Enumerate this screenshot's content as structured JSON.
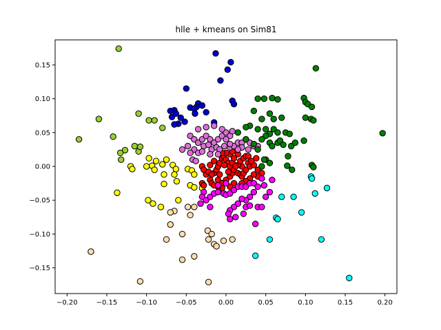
{
  "chart_data": {
    "type": "scatter",
    "title": "hlle + kmeans on Sim81",
    "xlabel": "",
    "ylabel": "",
    "xlim": [
      -0.215,
      0.215
    ],
    "ylim": [
      -0.188,
      0.187
    ],
    "xticks": [
      "−0.20",
      "−0.15",
      "−0.10",
      "−0.05",
      "0.00",
      "0.05",
      "0.10",
      "0.15",
      "0.20"
    ],
    "xtick_values": [
      -0.2,
      -0.15,
      -0.1,
      -0.05,
      0.0,
      0.05,
      0.1,
      0.15,
      0.2
    ],
    "yticks": [
      "−0.15",
      "−0.10",
      "−0.05",
      "0.00",
      "0.05",
      "0.10",
      "0.15"
    ],
    "ytick_values": [
      -0.15,
      -0.1,
      -0.05,
      0.0,
      0.05,
      0.1,
      0.15
    ],
    "grid": false,
    "legend": false,
    "marker_edge_color": "#000000",
    "series": [
      {
        "color": "#0000cd",
        "points": [
          [
            -0.013,
            0.167
          ],
          [
            0.006,
            0.154
          ],
          [
            0.002,
            0.143
          ],
          [
            -0.007,
            0.127
          ],
          [
            -0.05,
            0.115
          ],
          [
            -0.035,
            0.093
          ],
          [
            -0.037,
            0.088
          ],
          [
            -0.03,
            0.09
          ],
          [
            -0.045,
            0.087
          ],
          [
            -0.065,
            0.083
          ],
          [
            -0.07,
            0.082
          ],
          [
            -0.063,
            0.078
          ],
          [
            -0.04,
            0.085
          ],
          [
            -0.039,
            0.078
          ],
          [
            -0.025,
            0.08
          ],
          [
            -0.057,
            0.072
          ],
          [
            -0.068,
            0.073
          ],
          [
            -0.052,
            0.066
          ],
          [
            -0.06,
            0.063
          ],
          [
            -0.065,
            0.062
          ],
          [
            0.008,
            0.097
          ],
          [
            0.01,
            0.092
          ],
          [
            -0.015,
            0.065
          ]
        ]
      },
      {
        "color": "#9acd32",
        "points": [
          [
            -0.135,
            0.174
          ],
          [
            -0.16,
            0.07
          ],
          [
            -0.11,
            0.078
          ],
          [
            -0.097,
            0.068
          ],
          [
            -0.09,
            0.068
          ],
          [
            -0.08,
            0.057
          ],
          [
            -0.185,
            0.04
          ],
          [
            -0.142,
            0.044
          ],
          [
            -0.127,
            0.024
          ],
          [
            -0.133,
            0.02
          ],
          [
            -0.132,
            0.01
          ],
          [
            -0.115,
            0.03
          ],
          [
            -0.11,
            0.022
          ],
          [
            -0.108,
            0.029
          ]
        ]
      },
      {
        "color": "#ffff00",
        "points": [
          [
            -0.097,
            0.012
          ],
          [
            -0.088,
            0.008
          ],
          [
            -0.075,
            0.01
          ],
          [
            -0.067,
            0.002
          ],
          [
            -0.08,
            0.003
          ],
          [
            -0.093,
            0.001
          ],
          [
            -0.1,
            0.0
          ],
          [
            -0.09,
            -0.005
          ],
          [
            -0.12,
            0.0
          ],
          [
            -0.118,
            -0.004
          ],
          [
            -0.063,
            -0.004
          ],
          [
            -0.065,
            -0.012
          ],
          [
            -0.078,
            -0.012
          ],
          [
            -0.048,
            -0.004
          ],
          [
            -0.043,
            -0.006
          ],
          [
            -0.04,
            -0.012
          ],
          [
            -0.062,
            -0.022
          ],
          [
            -0.078,
            -0.026
          ],
          [
            -0.045,
            -0.028
          ],
          [
            -0.04,
            -0.031
          ],
          [
            -0.137,
            -0.039
          ],
          [
            -0.098,
            -0.05
          ],
          [
            -0.092,
            -0.055
          ],
          [
            -0.082,
            -0.06
          ],
          [
            -0.06,
            -0.05
          ],
          [
            -0.03,
            -0.032
          ]
        ]
      },
      {
        "color": "#ffdead",
        "points": [
          [
            -0.065,
            -0.066
          ],
          [
            -0.07,
            -0.068
          ],
          [
            -0.048,
            -0.06
          ],
          [
            -0.045,
            -0.072
          ],
          [
            -0.04,
            -0.06
          ],
          [
            -0.07,
            -0.086
          ],
          [
            -0.055,
            -0.1
          ],
          [
            -0.075,
            -0.108
          ],
          [
            -0.023,
            -0.095
          ],
          [
            -0.018,
            -0.1
          ],
          [
            -0.022,
            -0.108
          ],
          [
            -0.015,
            -0.115
          ],
          [
            -0.012,
            -0.118
          ],
          [
            -0.003,
            -0.11
          ],
          [
            0.008,
            -0.108
          ],
          [
            -0.04,
            -0.133
          ],
          [
            -0.055,
            -0.138
          ],
          [
            -0.17,
            -0.126
          ],
          [
            -0.108,
            -0.17
          ],
          [
            -0.022,
            -0.171
          ]
        ]
      },
      {
        "color": "#ff0000",
        "points": [
          [
            -0.03,
            0.0
          ],
          [
            -0.028,
            -0.005
          ],
          [
            -0.025,
            -0.012
          ],
          [
            -0.03,
            -0.025
          ],
          [
            -0.028,
            -0.028
          ],
          [
            -0.02,
            -0.02
          ],
          [
            -0.018,
            -0.025
          ],
          [
            -0.015,
            -0.01
          ],
          [
            -0.012,
            -0.005
          ],
          [
            -0.01,
            0.0
          ],
          [
            -0.008,
            0.005
          ],
          [
            -0.005,
            0.012
          ],
          [
            -0.003,
            0.015
          ],
          [
            0.0,
            0.01
          ],
          [
            0.003,
            0.005
          ],
          [
            0.005,
            0.0
          ],
          [
            0.008,
            0.005
          ],
          [
            0.01,
            0.012
          ],
          [
            0.005,
            0.018
          ],
          [
            0.0,
            0.02
          ],
          [
            -0.005,
            0.02
          ],
          [
            -0.015,
            0.008
          ],
          [
            -0.02,
            0.002
          ],
          [
            -0.022,
            -0.008
          ],
          [
            -0.01,
            -0.02
          ],
          [
            -0.005,
            -0.025
          ],
          [
            0.0,
            -0.02
          ],
          [
            0.005,
            -0.015
          ],
          [
            0.008,
            -0.01
          ],
          [
            0.01,
            -0.005
          ],
          [
            0.015,
            -0.01
          ],
          [
            0.018,
            -0.012
          ],
          [
            0.02,
            -0.015
          ],
          [
            0.022,
            -0.01
          ],
          [
            0.025,
            -0.005
          ],
          [
            0.02,
            0.0
          ],
          [
            0.015,
            0.002
          ],
          [
            0.018,
            0.008
          ],
          [
            0.022,
            0.012
          ],
          [
            0.025,
            0.015
          ],
          [
            0.028,
            0.005
          ],
          [
            0.03,
            0.0
          ],
          [
            0.035,
            0.002
          ],
          [
            0.04,
            -0.005
          ],
          [
            0.045,
            -0.01
          ],
          [
            0.04,
            -0.015
          ],
          [
            0.035,
            -0.012
          ],
          [
            0.03,
            -0.018
          ],
          [
            0.025,
            -0.022
          ],
          [
            0.02,
            -0.025
          ],
          [
            0.01,
            -0.025
          ],
          [
            0.005,
            -0.03
          ],
          [
            -0.005,
            -0.032
          ],
          [
            -0.01,
            -0.03
          ],
          [
            -0.015,
            -0.028
          ],
          [
            -0.008,
            -0.012
          ],
          [
            0.003,
            -0.008
          ],
          [
            0.012,
            0.0
          ],
          [
            -0.002,
            0.002
          ],
          [
            -0.018,
            -0.012
          ],
          [
            0.032,
            0.008
          ],
          [
            0.038,
            0.012
          ],
          [
            0.028,
            0.015
          ],
          [
            0.015,
            0.018
          ],
          [
            0.008,
            0.022
          ]
        ]
      },
      {
        "color": "#ff00ff",
        "points": [
          [
            -0.028,
            -0.038
          ],
          [
            -0.03,
            -0.045
          ],
          [
            -0.032,
            -0.055
          ],
          [
            -0.025,
            -0.05
          ],
          [
            -0.02,
            -0.045
          ],
          [
            -0.015,
            -0.04
          ],
          [
            -0.01,
            -0.038
          ],
          [
            -0.003,
            -0.04
          ],
          [
            0.0,
            -0.042
          ],
          [
            0.005,
            -0.04
          ],
          [
            0.01,
            -0.035
          ],
          [
            0.015,
            -0.03
          ],
          [
            0.02,
            -0.03
          ],
          [
            0.025,
            -0.03
          ],
          [
            0.03,
            -0.025
          ],
          [
            0.035,
            -0.025
          ],
          [
            0.04,
            -0.03
          ],
          [
            0.035,
            -0.038
          ],
          [
            0.03,
            -0.045
          ],
          [
            0.025,
            -0.05
          ],
          [
            0.02,
            -0.048
          ],
          [
            0.015,
            -0.055
          ],
          [
            0.01,
            -0.06
          ],
          [
            0.005,
            -0.065
          ],
          [
            0.003,
            -0.07
          ],
          [
            0.005,
            -0.078
          ],
          [
            0.012,
            -0.075
          ],
          [
            0.022,
            -0.07
          ],
          [
            0.025,
            -0.06
          ],
          [
            0.03,
            -0.058
          ],
          [
            0.04,
            -0.06
          ],
          [
            0.045,
            -0.06
          ],
          [
            0.05,
            -0.045
          ],
          [
            0.055,
            -0.038
          ],
          [
            0.058,
            -0.02
          ],
          [
            0.045,
            -0.018
          ],
          [
            0.048,
            -0.028
          ],
          [
            0.037,
            -0.085
          ],
          [
            -0.02,
            -0.06
          ],
          [
            -0.01,
            -0.028
          ],
          [
            0.0,
            -0.025
          ]
        ]
      },
      {
        "color": "#da70d6",
        "points": [
          [
            -0.045,
            0.045
          ],
          [
            -0.04,
            0.04
          ],
          [
            -0.035,
            0.035
          ],
          [
            -0.03,
            0.04
          ],
          [
            -0.025,
            0.045
          ],
          [
            -0.02,
            0.04
          ],
          [
            -0.015,
            0.035
          ],
          [
            -0.01,
            0.04
          ],
          [
            -0.005,
            0.045
          ],
          [
            0.0,
            0.05
          ],
          [
            0.005,
            0.045
          ],
          [
            -0.035,
            0.055
          ],
          [
            -0.025,
            0.058
          ],
          [
            -0.015,
            0.06
          ],
          [
            -0.005,
            0.055
          ],
          [
            -0.055,
            0.025
          ],
          [
            -0.048,
            0.03
          ],
          [
            -0.04,
            0.025
          ],
          [
            -0.035,
            0.02
          ],
          [
            -0.028,
            0.03
          ],
          [
            -0.022,
            0.032
          ],
          [
            -0.018,
            0.025
          ],
          [
            -0.012,
            0.028
          ],
          [
            -0.008,
            0.025
          ],
          [
            -0.002,
            0.03
          ],
          [
            0.005,
            0.028
          ],
          [
            0.01,
            0.03
          ],
          [
            0.015,
            0.035
          ],
          [
            0.02,
            0.035
          ],
          [
            0.025,
            0.04
          ],
          [
            0.03,
            0.035
          ],
          [
            0.035,
            0.03
          ],
          [
            0.04,
            0.03
          ],
          [
            0.028,
            0.025
          ],
          [
            0.02,
            0.028
          ],
          [
            0.015,
            0.025
          ],
          [
            -0.03,
            0.022
          ],
          [
            -0.042,
            0.01
          ],
          [
            -0.038,
            0.008
          ],
          [
            -0.045,
            0.02
          ],
          [
            0.005,
            0.033
          ],
          [
            -0.02,
            0.018
          ],
          [
            -0.01,
            0.018
          ],
          [
            0.0,
            0.04
          ],
          [
            0.008,
            0.052
          ]
        ]
      },
      {
        "color": "#008000",
        "points": [
          [
            0.113,
            0.145
          ],
          [
            0.04,
            0.1
          ],
          [
            0.048,
            0.1
          ],
          [
            0.058,
            0.101
          ],
          [
            0.065,
            0.099
          ],
          [
            0.098,
            0.101
          ],
          [
            0.1,
            0.095
          ],
          [
            0.103,
            0.092
          ],
          [
            0.108,
            0.088
          ],
          [
            0.035,
            0.082
          ],
          [
            0.055,
            0.078
          ],
          [
            0.045,
            0.07
          ],
          [
            0.06,
            0.07
          ],
          [
            0.07,
            0.072
          ],
          [
            0.1,
            0.072
          ],
          [
            0.107,
            0.07
          ],
          [
            0.11,
            0.068
          ],
          [
            0.03,
            0.06
          ],
          [
            0.025,
            0.058
          ],
          [
            0.04,
            0.055
          ],
          [
            0.05,
            0.055
          ],
          [
            0.06,
            0.055
          ],
          [
            0.065,
            0.05
          ],
          [
            0.075,
            0.05
          ],
          [
            0.08,
            0.048
          ],
          [
            0.055,
            0.048
          ],
          [
            0.05,
            0.045
          ],
          [
            0.045,
            0.04
          ],
          [
            0.055,
            0.035
          ],
          [
            0.058,
            0.03
          ],
          [
            0.065,
            0.035
          ],
          [
            0.068,
            0.038
          ],
          [
            0.072,
            0.032
          ],
          [
            0.082,
            0.03
          ],
          [
            0.087,
            0.035
          ],
          [
            0.098,
            0.038
          ],
          [
            0.078,
            0.015
          ],
          [
            0.077,
            0.001
          ],
          [
            0.083,
            -0.005
          ],
          [
            0.05,
            0.01
          ],
          [
            0.048,
            0.01
          ],
          [
            0.055,
            0.005
          ],
          [
            0.045,
            0.0
          ],
          [
            0.04,
            0.025
          ],
          [
            0.035,
            0.033
          ],
          [
            0.015,
            0.05
          ],
          [
            0.025,
            0.04
          ],
          [
            0.108,
            0.002
          ],
          [
            0.11,
            -0.001
          ],
          [
            0.197,
            0.049
          ]
        ]
      },
      {
        "color": "#00ffff",
        "points": [
          [
            0.063,
            -0.076
          ],
          [
            0.065,
            -0.078
          ],
          [
            0.07,
            -0.045
          ],
          [
            0.085,
            -0.045
          ],
          [
            0.095,
            -0.068
          ],
          [
            0.107,
            -0.015
          ],
          [
            0.108,
            -0.018
          ],
          [
            0.112,
            -0.04
          ],
          [
            0.12,
            -0.108
          ],
          [
            0.127,
            -0.032
          ],
          [
            0.055,
            -0.108
          ],
          [
            0.037,
            -0.132
          ],
          [
            0.155,
            -0.165
          ]
        ]
      }
    ]
  }
}
